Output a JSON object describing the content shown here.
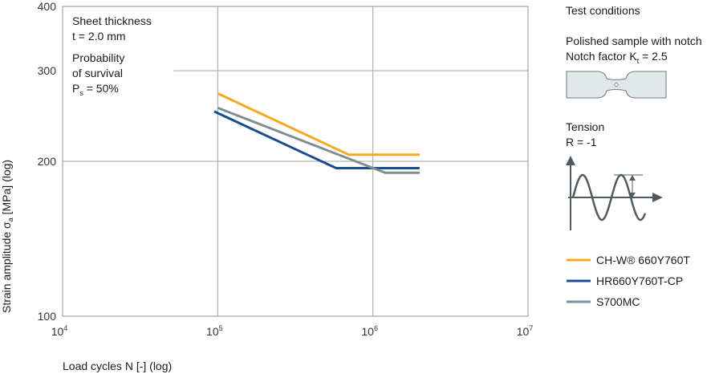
{
  "chart_data": {
    "type": "line",
    "scale": {
      "x": "log",
      "y": "log"
    },
    "xlim": [
      10000,
      10000000
    ],
    "ylim": [
      100,
      400
    ],
    "xlabel": "Load cycles N [-] (log)",
    "ylabel": "Strain amplitude σa [MPa] (log)",
    "ylabel_main": "Strain amplitude σ",
    "ylabel_sub": "a",
    "ylabel_tail": " [MPa] (log)",
    "x_ticks": [
      {
        "value": 10000,
        "base": "10",
        "exp": "4"
      },
      {
        "value": 100000,
        "base": "10",
        "exp": "5"
      },
      {
        "value": 1000000,
        "base": "10",
        "exp": "6"
      },
      {
        "value": 10000000,
        "base": "10",
        "exp": "7"
      }
    ],
    "y_ticks": [
      {
        "value": 100,
        "label": "100"
      },
      {
        "value": 200,
        "label": "200"
      },
      {
        "value": 300,
        "label": "300"
      },
      {
        "value": 400,
        "label": "400"
      }
    ],
    "grid": true,
    "annotations": {
      "sheet_thickness_title": "Sheet thickness",
      "sheet_thickness_value": "t = 2.0 mm",
      "probability_line1": "Probability",
      "probability_line2": "of survival",
      "probability_main": "P",
      "probability_sub": "s",
      "probability_tail": " = 50%"
    },
    "series": [
      {
        "name": "CH-W® 660Y760T",
        "color": "#f7a823",
        "points": [
          [
            100000,
            271
          ],
          [
            700000,
            206
          ],
          [
            2000000,
            206
          ]
        ]
      },
      {
        "name": "HR660Y760T-CP",
        "color": "#1a4d8f",
        "points": [
          [
            95000,
            250
          ],
          [
            580000,
            194
          ],
          [
            2000000,
            194
          ]
        ]
      },
      {
        "name": "S700MC",
        "color": "#7f8c95",
        "points": [
          [
            100000,
            254
          ],
          [
            1200000,
            190
          ],
          [
            2000000,
            190
          ]
        ]
      }
    ],
    "legend_position": "right"
  },
  "test_conditions": {
    "title": "Test conditions",
    "sample_line1": "Polished sample with notch",
    "notch_main": "Notch factor K",
    "notch_sub": "t",
    "notch_tail": " = 2.5",
    "tension_title": "Tension",
    "tension_ratio": "R = -1"
  },
  "colors": {
    "grid": "#9aa5ad",
    "axis_border": "#8a949b",
    "specimen_fill": "#e2e7ea",
    "specimen_stroke": "#6f7b84",
    "wave": "#4f5b63"
  }
}
